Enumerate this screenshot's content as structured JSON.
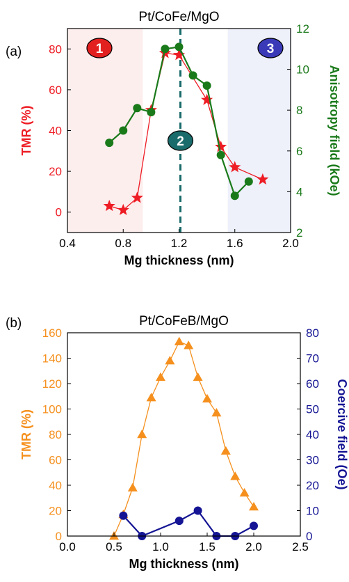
{
  "chart_data": [
    {
      "panel_label": "(a)",
      "type": "line",
      "title": "Pt/CoFe/MgO",
      "xlabel": "Mg thickness (nm)",
      "ylabel_left": "TMR (%)",
      "ylabel_right": "Anisotropy field (kOe)",
      "xlim": [
        0.4,
        2.0
      ],
      "ylim_left": [
        -10,
        90
      ],
      "ylim_right": [
        2,
        12
      ],
      "xticks": [
        "0.4",
        "0.8",
        "1.2",
        "1.6",
        "2.0"
      ],
      "xtick_values": [
        0.4,
        0.8,
        1.2,
        1.6,
        2.0
      ],
      "yticks_left": [
        "0",
        "20",
        "40",
        "60",
        "80"
      ],
      "ytick_values_left": [
        0,
        20,
        40,
        60,
        80
      ],
      "yticks_right": [
        "2",
        "4",
        "6",
        "8",
        "10",
        "12"
      ],
      "ytick_values_right": [
        2,
        4,
        6,
        8,
        10,
        12
      ],
      "colors": {
        "left": "#ee1c24",
        "right": "#1a7a1a",
        "dash": "#1a6b6b",
        "region1": "#fdeeee",
        "region3": "#eef0fa"
      },
      "regions": [
        {
          "label": "1",
          "x_range": [
            0.4,
            0.94
          ],
          "color": "#e32020"
        },
        {
          "label": "2",
          "x": 1.21,
          "color": "#1a6b6b"
        },
        {
          "label": "3",
          "x_range": [
            1.55,
            2.0
          ],
          "color": "#3a3ab8"
        }
      ],
      "series": [
        {
          "axis": "left",
          "marker": "star",
          "color": "#ee1c24",
          "x": [
            0.7,
            0.8,
            0.9,
            1.0,
            1.1,
            1.2,
            1.4,
            1.5,
            1.6,
            1.8
          ],
          "y": [
            3,
            1,
            7,
            50,
            78,
            77,
            55,
            32,
            22,
            16
          ]
        },
        {
          "axis": "right",
          "marker": "circle",
          "color": "#1a7a1a",
          "x": [
            0.7,
            0.8,
            0.9,
            1.0,
            1.1,
            1.2,
            1.3,
            1.4,
            1.5,
            1.6,
            1.7
          ],
          "y": [
            6.4,
            7.0,
            8.1,
            7.9,
            11.0,
            11.1,
            9.7,
            9.2,
            5.8,
            3.8,
            4.5
          ]
        }
      ]
    },
    {
      "panel_label": "(b)",
      "type": "line",
      "title": "Pt/CoFeB/MgO",
      "xlabel": "Mg thickness (nm)",
      "ylabel_left": "TMR (%)",
      "ylabel_right": "Coercive field (Oe)",
      "xlim": [
        0.0,
        2.5
      ],
      "ylim_left": [
        0,
        160
      ],
      "ylim_right": [
        0,
        80
      ],
      "xticks": [
        "0.0",
        "0.5",
        "1.0",
        "1.5",
        "2.0",
        "2.5"
      ],
      "xtick_values": [
        0.0,
        0.5,
        1.0,
        1.5,
        2.0,
        2.5
      ],
      "yticks_left": [
        "0",
        "20",
        "40",
        "60",
        "80",
        "100",
        "120",
        "140",
        "160"
      ],
      "ytick_values_left": [
        0,
        20,
        40,
        60,
        80,
        100,
        120,
        140,
        160
      ],
      "yticks_right": [
        "0",
        "10",
        "20",
        "30",
        "40",
        "50",
        "60",
        "70",
        "80"
      ],
      "ytick_values_right": [
        0,
        10,
        20,
        30,
        40,
        50,
        60,
        70,
        80
      ],
      "colors": {
        "left": "#f5901e",
        "right": "#141494"
      },
      "series": [
        {
          "axis": "left",
          "marker": "triangle",
          "color": "#f5901e",
          "x": [
            0.5,
            0.6,
            0.7,
            0.8,
            0.9,
            1.0,
            1.1,
            1.2,
            1.3,
            1.4,
            1.5,
            1.6,
            1.7,
            1.8,
            1.9,
            2.0
          ],
          "y": [
            0,
            17,
            38,
            80,
            109,
            125,
            138,
            153,
            150,
            125,
            108,
            97,
            67,
            47,
            34,
            23
          ]
        },
        {
          "axis": "right",
          "marker": "circle",
          "color": "#141494",
          "x": [
            0.6,
            0.8,
            1.2,
            1.4,
            1.6,
            1.8,
            2.0
          ],
          "y": [
            8,
            0,
            6,
            10,
            0,
            0,
            4
          ]
        }
      ]
    }
  ]
}
